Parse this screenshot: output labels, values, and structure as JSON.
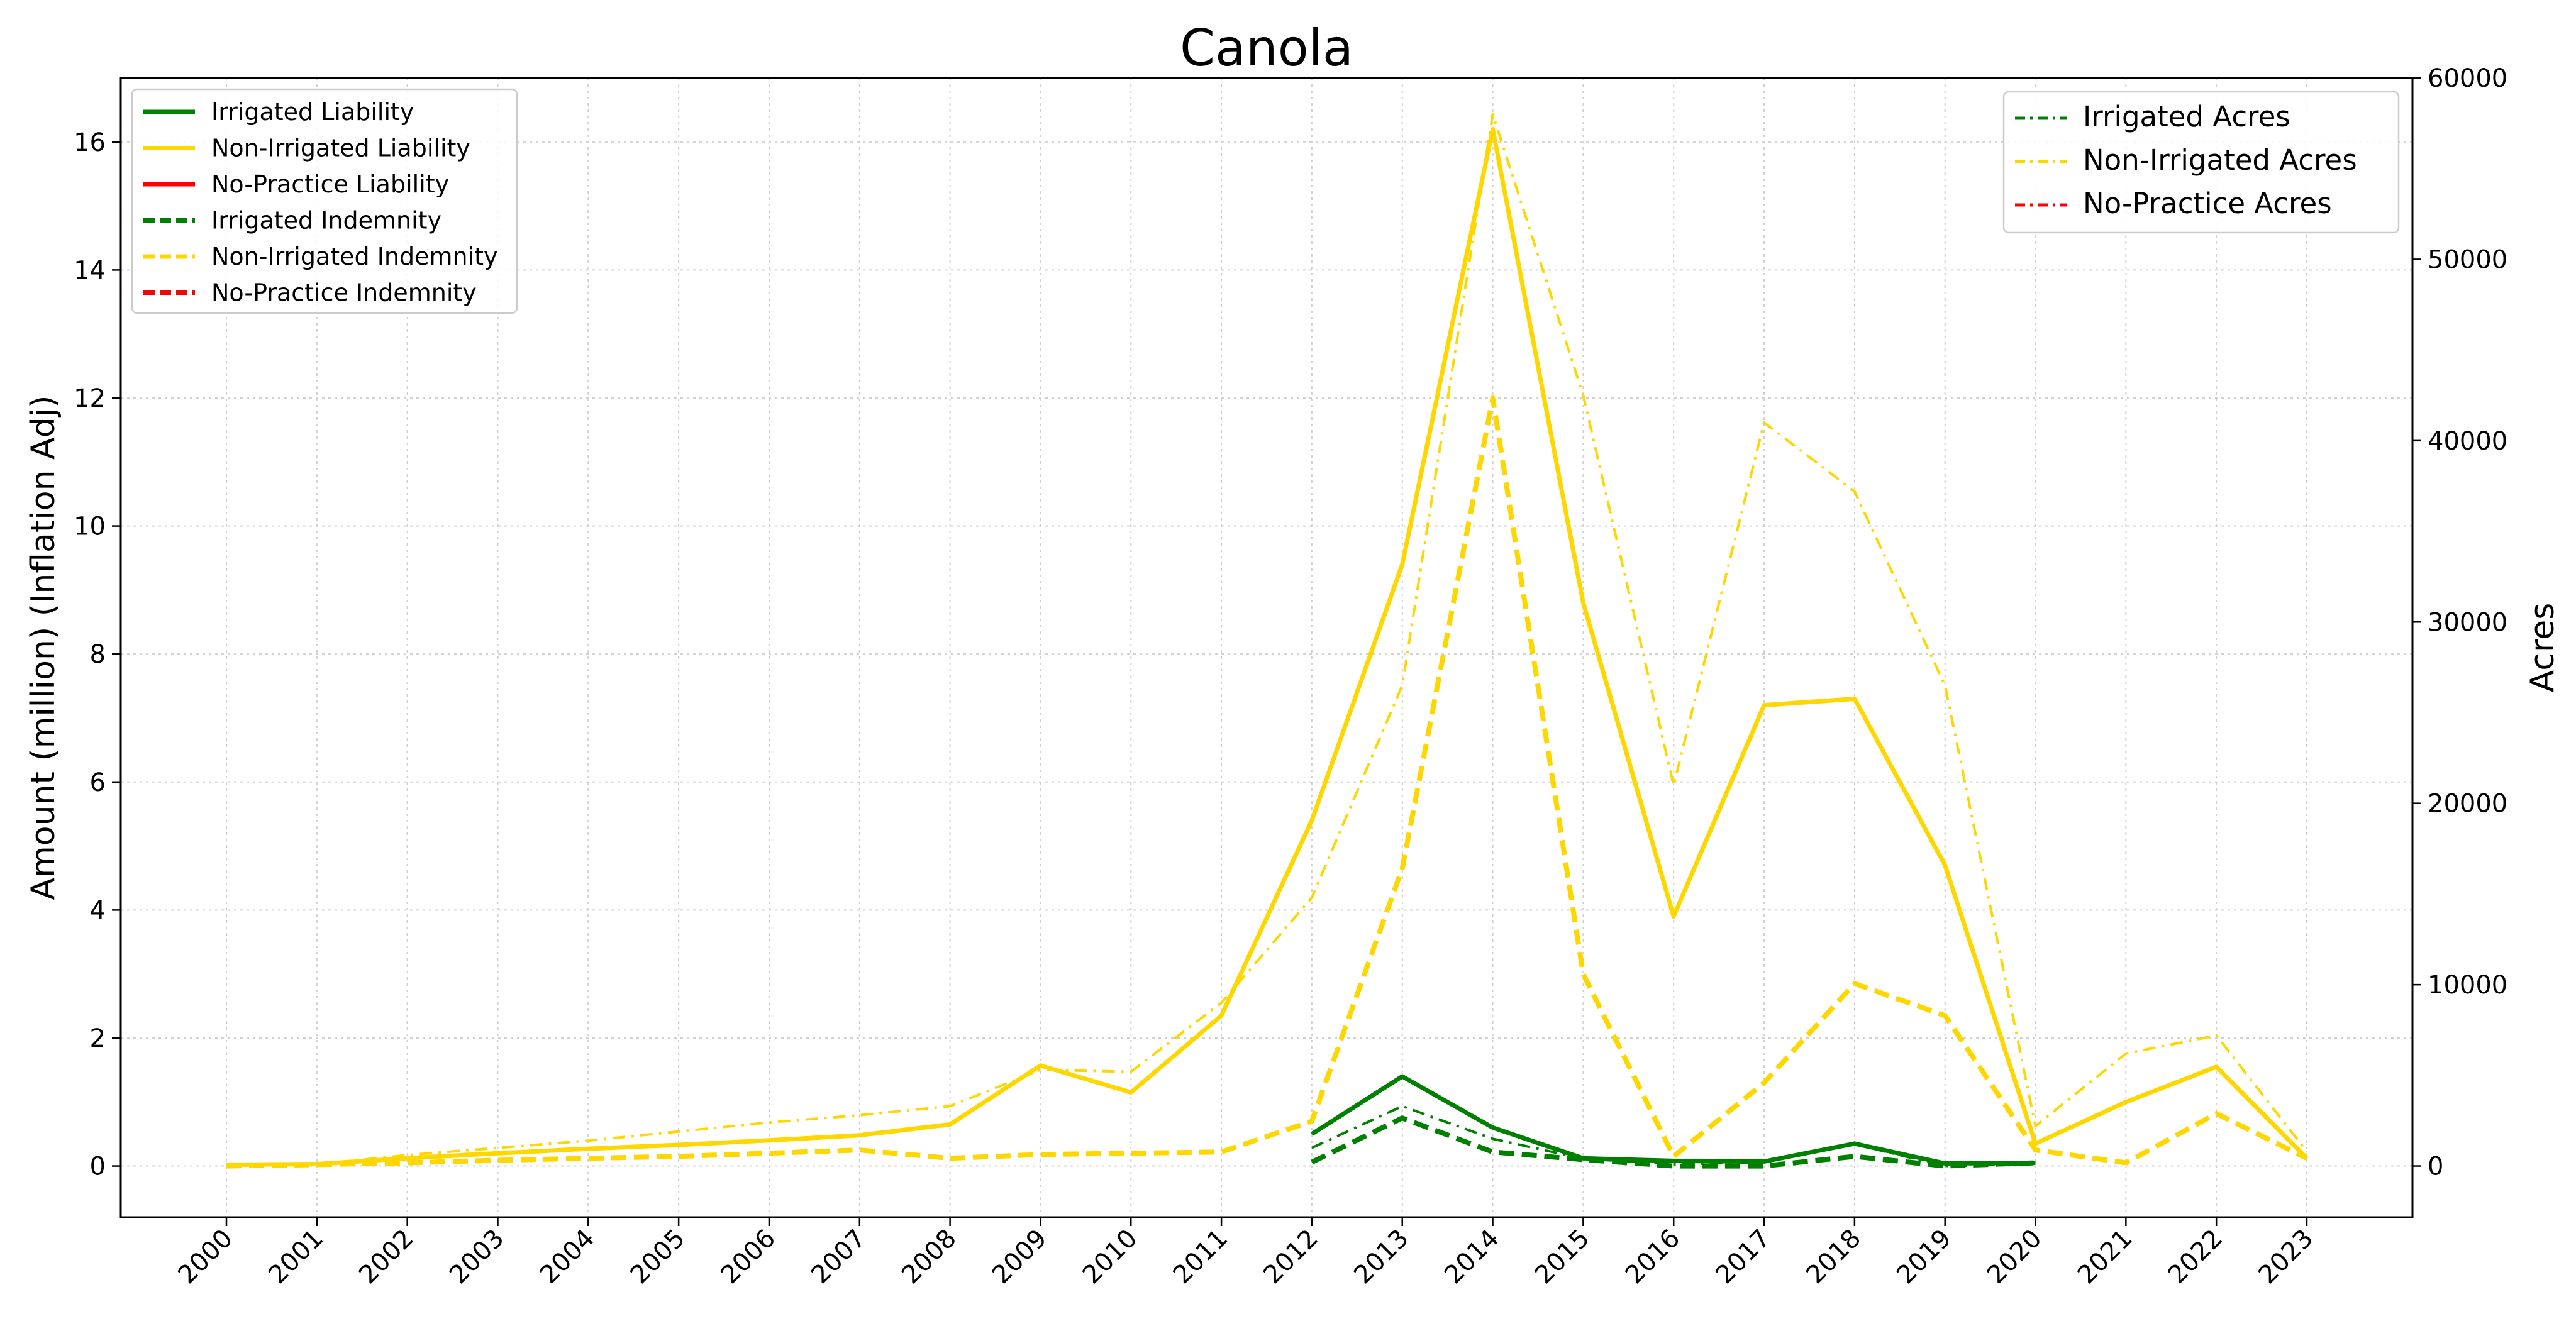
{
  "chart_data": {
    "type": "line",
    "title": "Canola",
    "xlabel": "",
    "ylabel": "Amount (million) (Inflation Adj)",
    "ylabel_right": "Acres",
    "x": [
      "2000",
      "2001",
      "2002",
      "2003",
      "2004",
      "2005",
      "2006",
      "2007",
      "2008",
      "2009",
      "2010",
      "2011",
      "2012",
      "2013",
      "2014",
      "2015",
      "2016",
      "2017",
      "2018",
      "2019",
      "2020",
      "2021",
      "2022",
      "2023"
    ],
    "ylim": [
      -0.8,
      17.0
    ],
    "ylim_right": [
      -2824,
      60000
    ],
    "yticks": [
      0,
      2,
      4,
      6,
      8,
      10,
      12,
      14,
      16
    ],
    "yticks_right": [
      0,
      10000,
      20000,
      30000,
      40000,
      50000,
      60000
    ],
    "grid": true,
    "legend_left_position": "upper-left",
    "legend_right_position": "upper-right",
    "colors": {
      "irrigated": "#008000",
      "non_irrigated": "#FFD700",
      "no_practice": "#FF0000"
    },
    "series": [
      {
        "name": "Irrigated Liability",
        "axis": "left",
        "style": "solid",
        "color": "#008000",
        "values": [
          null,
          null,
          null,
          null,
          null,
          null,
          null,
          null,
          null,
          null,
          null,
          null,
          0.5,
          1.4,
          0.6,
          0.12,
          0.08,
          0.07,
          0.35,
          0.04,
          0.05,
          null,
          null,
          null
        ]
      },
      {
        "name": "Non-Irrigated Liability",
        "axis": "left",
        "style": "solid",
        "color": "#FFD700",
        "values": [
          0.02,
          0.03,
          0.12,
          0.2,
          0.27,
          0.33,
          0.4,
          0.48,
          0.65,
          1.57,
          1.15,
          2.35,
          5.4,
          9.4,
          16.2,
          8.8,
          3.9,
          7.2,
          7.3,
          4.7,
          0.35,
          1.0,
          1.55,
          0.12
        ]
      },
      {
        "name": "No-Practice Liability",
        "axis": "left",
        "style": "solid",
        "color": "#FF0000",
        "values": [
          null,
          null,
          null,
          null,
          null,
          null,
          null,
          null,
          null,
          null,
          null,
          null,
          null,
          null,
          null,
          null,
          null,
          null,
          null,
          null,
          null,
          null,
          null,
          null
        ]
      },
      {
        "name": "Irrigated Indemnity",
        "axis": "left",
        "style": "dashed",
        "color": "#008000",
        "values": [
          null,
          null,
          null,
          null,
          null,
          null,
          null,
          null,
          null,
          null,
          null,
          null,
          0.06,
          0.75,
          0.22,
          0.1,
          0.0,
          0.0,
          0.15,
          0.0,
          0.05,
          null,
          null,
          null
        ]
      },
      {
        "name": "Non-Irrigated Indemnity",
        "axis": "left",
        "style": "dashed",
        "color": "#FFD700",
        "values": [
          0.0,
          0.02,
          0.05,
          0.09,
          0.12,
          0.15,
          0.2,
          0.25,
          0.12,
          0.18,
          0.2,
          0.22,
          0.7,
          4.65,
          12.0,
          3.0,
          0.15,
          1.3,
          2.85,
          2.35,
          0.25,
          0.05,
          0.82,
          0.12
        ]
      },
      {
        "name": "No-Practice Indemnity",
        "axis": "left",
        "style": "dashed",
        "color": "#FF0000",
        "values": [
          null,
          null,
          null,
          null,
          null,
          null,
          null,
          null,
          null,
          null,
          null,
          null,
          null,
          null,
          null,
          null,
          null,
          null,
          null,
          null,
          null,
          null,
          null,
          null
        ]
      },
      {
        "name": "Irrigated Acres",
        "axis": "right",
        "style": "dashdot",
        "color": "#008000",
        "values": [
          null,
          null,
          null,
          null,
          null,
          null,
          null,
          null,
          null,
          null,
          null,
          null,
          1000,
          3300,
          1500,
          400,
          100,
          200,
          1200,
          0,
          100,
          null,
          null,
          null
        ]
      },
      {
        "name": "Non-Irrigated Acres",
        "axis": "right",
        "style": "dashdot",
        "color": "#FFD700",
        "values": [
          0,
          100,
          600,
          1000,
          1400,
          1900,
          2400,
          2800,
          3300,
          5300,
          5200,
          9000,
          14800,
          26500,
          58000,
          42500,
          21000,
          41000,
          37200,
          26500,
          2200,
          6200,
          7200,
          800
        ]
      },
      {
        "name": "No-Practice Acres",
        "axis": "right",
        "style": "dashdot",
        "color": "#FF0000",
        "values": [
          null,
          null,
          null,
          null,
          null,
          null,
          null,
          null,
          null,
          null,
          null,
          null,
          null,
          null,
          null,
          null,
          null,
          null,
          null,
          null,
          null,
          null,
          null,
          null
        ]
      }
    ],
    "legend_left": [
      "Irrigated Liability",
      "Non-Irrigated Liability",
      "No-Practice Liability",
      "Irrigated Indemnity",
      "Non-Irrigated Indemnity",
      "No-Practice Indemnity"
    ],
    "legend_right": [
      "Irrigated Acres",
      "Non-Irrigated Acres",
      "No-Practice Acres"
    ]
  }
}
